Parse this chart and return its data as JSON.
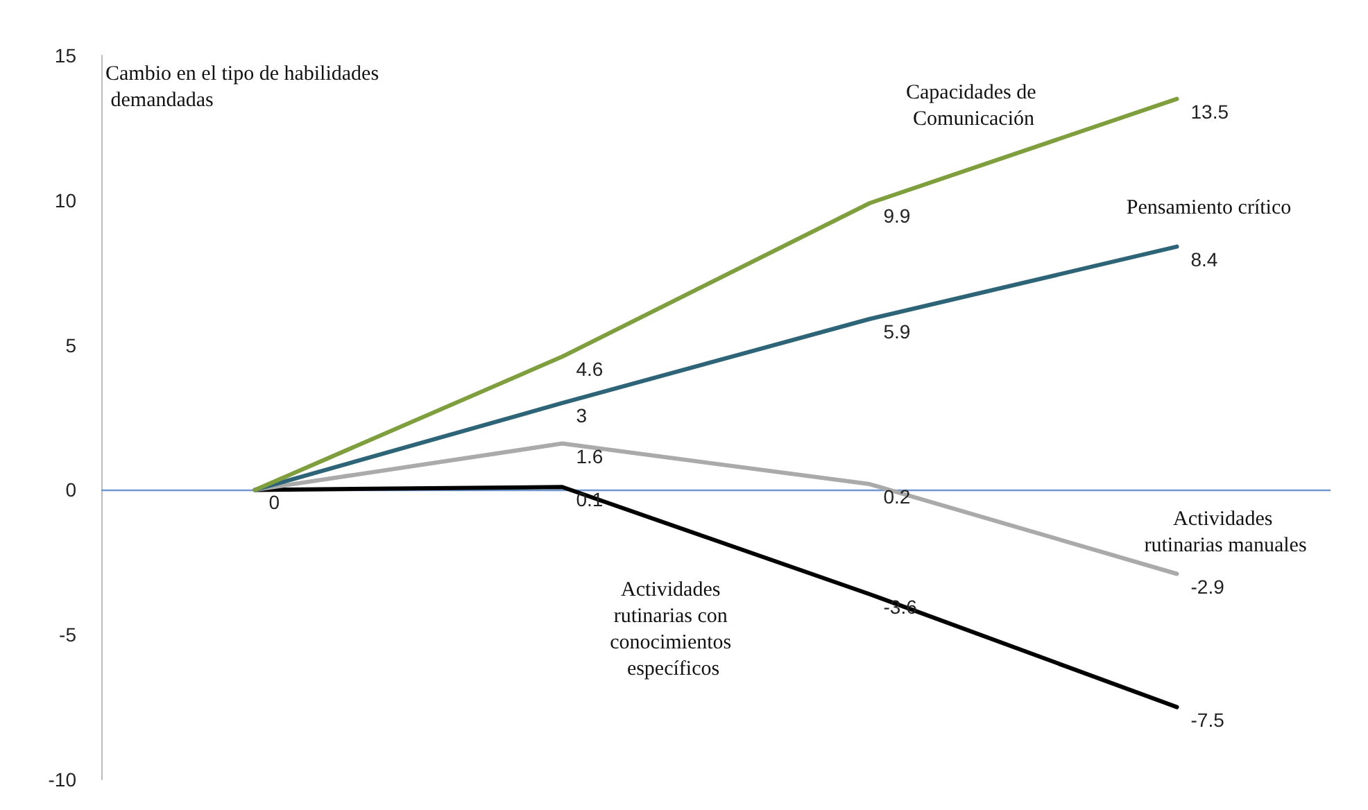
{
  "chart_data": {
    "type": "line",
    "ylabel": "Cambio en el tipo de habilidades demandadas",
    "categories": [
      null,
      null,
      null,
      null
    ],
    "series": [
      {
        "name": "Capacidades de Comunicación",
        "color": "#7f9f3e",
        "values": [
          0,
          4.6,
          9.9,
          13.5
        ],
        "value_labels": [
          "0",
          "4.6",
          "9.9",
          "13.5"
        ]
      },
      {
        "name": "Pensamiento crítico",
        "color": "#2e6478",
        "values": [
          0,
          3,
          5.9,
          8.4
        ],
        "value_labels": [
          null,
          "3",
          "5.9",
          "8.4"
        ]
      },
      {
        "name": "Actividades rutinarias manuales",
        "color": "#aaaaaa",
        "values": [
          0,
          1.6,
          0.2,
          -2.9
        ],
        "value_labels": [
          null,
          "1.6",
          "0.2",
          "-2.9"
        ]
      },
      {
        "name": "Actividades rutinarias con conocimientos específicos",
        "color": "#000000",
        "values": [
          0,
          0.1,
          -3.6,
          -7.5
        ],
        "value_labels": [
          null,
          "0.1",
          "-3.6",
          "-7.5"
        ]
      }
    ],
    "ylim": [
      -10,
      15
    ],
    "yticks": [
      -10,
      -5,
      0,
      5,
      10,
      15
    ],
    "grid": false,
    "legend": false,
    "marker": "none",
    "line_style": "solid",
    "ref_lines": [
      {
        "axis": "y",
        "value": 0,
        "color": "#6f96d0"
      }
    ]
  }
}
